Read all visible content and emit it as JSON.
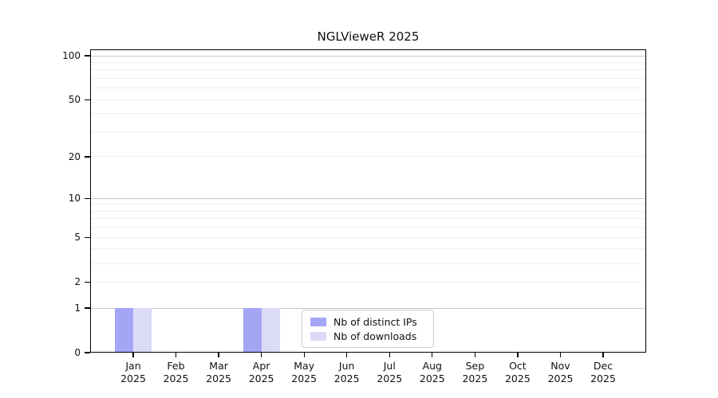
{
  "chart_data": {
    "type": "bar",
    "title": "NGLVieweR 2025",
    "xlabel": "",
    "ylabel": "",
    "categories": [
      "Jan",
      "Feb",
      "Mar",
      "Apr",
      "May",
      "Jun",
      "Jul",
      "Aug",
      "Sep",
      "Oct",
      "Nov",
      "Dec"
    ],
    "category_year": "2025",
    "series": [
      {
        "name": "Nb of distinct IPs",
        "color": "#a5a5f6",
        "values": [
          1,
          0,
          0,
          1,
          0,
          0,
          0,
          0,
          0,
          0,
          0,
          0
        ]
      },
      {
        "name": "Nb of downloads",
        "color": "#dbdbf8",
        "values": [
          1,
          0,
          0,
          1,
          0,
          0,
          0,
          0,
          0,
          0,
          0,
          0
        ]
      }
    ],
    "yscale": "log1p",
    "ylim": [
      0,
      110.5
    ],
    "yticks": [
      0,
      1,
      2,
      5,
      10,
      20,
      50,
      100
    ],
    "grid": {
      "orientation": "horizontal",
      "major_values": [
        1,
        10,
        100
      ],
      "minor_values": [
        2,
        3,
        4,
        5,
        6,
        7,
        8,
        9,
        20,
        30,
        40,
        50,
        60,
        70,
        80,
        90
      ],
      "major_color": "#c9c9c9",
      "minor_color": "#efefef"
    },
    "legend_position": "bottom-center"
  }
}
